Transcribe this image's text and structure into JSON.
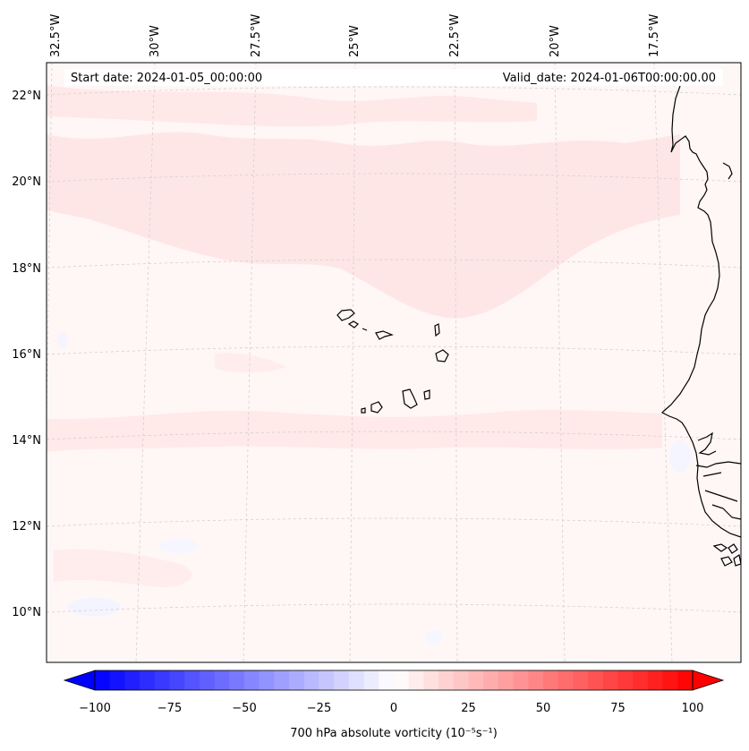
{
  "map": {
    "header": {
      "start_date": "Start date: 2024-01-05_00:00:00",
      "valid_date": "Valid_date: 2024-01-06T00:00:00.00"
    },
    "lon_labels": [
      "32.5°W",
      "30°W",
      "27.5°W",
      "25°W",
      "22.5°W",
      "20°W",
      "17.5°W"
    ],
    "lat_labels": [
      "22°N",
      "20°N",
      "18°N",
      "16°N",
      "14°N",
      "12°N",
      "10°N"
    ],
    "extent": {
      "lon": [
        -32.5,
        -16.0
      ],
      "lat": [
        8.8,
        22.8
      ]
    },
    "field_colors": {
      "background": "#fff6f6",
      "positive_band": "#ffe6e6",
      "negative_patch": "#f2f4ff",
      "coastline": "#000000"
    }
  },
  "colorbar": {
    "label": "700 hPa absolute vorticity (10⁻⁵s⁻¹)",
    "ticks": [
      "−100",
      "−75",
      "−50",
      "−25",
      "0",
      "25",
      "50",
      "75",
      "100"
    ],
    "range": [
      -100,
      100
    ],
    "step": 5,
    "min_color": "#0000ff",
    "mid_color": "#ffffff",
    "max_color": "#ff0000"
  }
}
